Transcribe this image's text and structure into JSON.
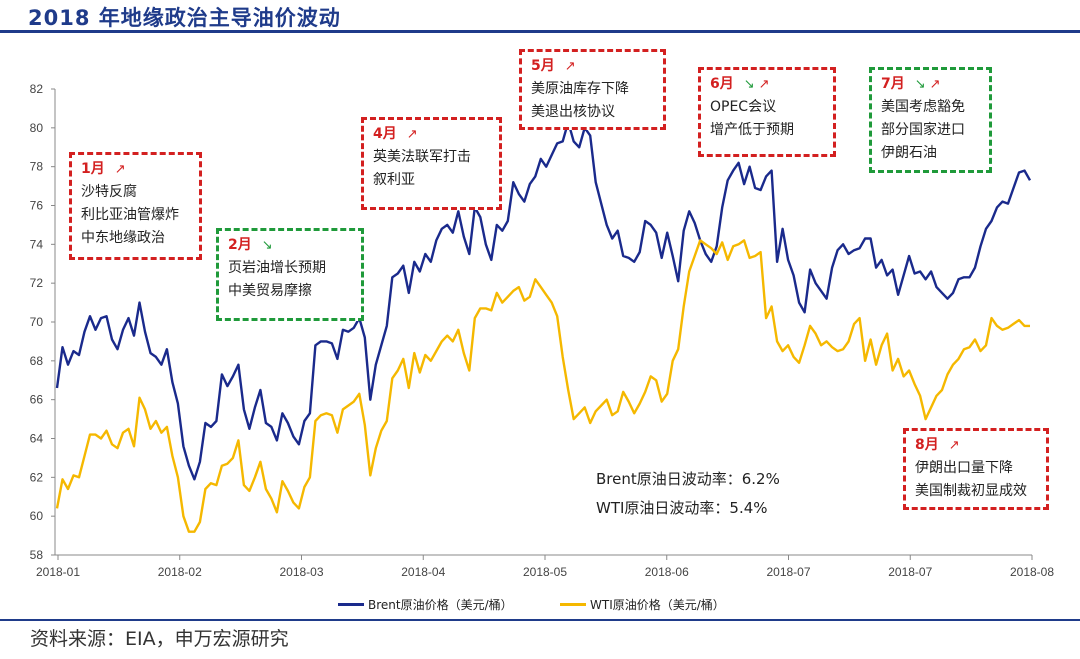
{
  "title": "2018 年地缘政治主导油价波动",
  "source": "资料来源：EIA，申万宏源研究",
  "volatility": {
    "brent": "Brent原油日波动率：6.2%",
    "wti": "WTI原油日波动率：5.4%"
  },
  "annotations": [
    {
      "month": "1月",
      "dir": "up",
      "color": "red",
      "lines": [
        "沙特反腐",
        "利比亚油管爆炸",
        "中东地缘政治"
      ]
    },
    {
      "month": "2月",
      "dir": "down",
      "color": "green",
      "lines": [
        "页岩油增长预期",
        "中美贸易摩擦"
      ]
    },
    {
      "month": "4月",
      "dir": "up",
      "color": "red",
      "lines": [
        "英美法联军打击",
        "叙利亚"
      ]
    },
    {
      "month": "5月",
      "dir": "up",
      "color": "red",
      "lines": [
        "美原油库存下降",
        "美退出核协议"
      ]
    },
    {
      "month": "6月",
      "dir": "downup",
      "color": "red",
      "lines": [
        "OPEC会议",
        "增产低于预期"
      ]
    },
    {
      "month": "7月",
      "dir": "downup",
      "color": "green",
      "lines": [
        "美国考虑豁免",
        "部分国家进口",
        "伊朗石油"
      ]
    },
    {
      "month": "8月",
      "dir": "up",
      "color": "red",
      "lines": [
        "伊朗出口量下降",
        "美国制裁初显成效"
      ]
    }
  ],
  "chart_data": {
    "type": "line",
    "x_tick_labels": [
      "2018-01",
      "2018-02",
      "2018-03",
      "2018-04",
      "2018-05",
      "2018-06",
      "2018-07",
      "2018-07",
      "2018-08"
    ],
    "ylim": [
      58,
      82
    ],
    "yticks": [
      58,
      60,
      62,
      64,
      66,
      68,
      70,
      72,
      74,
      76,
      78,
      80,
      82
    ],
    "x_positions_note": "index 0-200 over trading days",
    "series": [
      {
        "name": "Brent原油价格（美元/桶）",
        "color": "#1a2a8c",
        "values": [
          66.6,
          68.7,
          67.8,
          68.5,
          68.3,
          69.5,
          70.3,
          69.6,
          70.2,
          70.3,
          69.1,
          68.6,
          69.6,
          70.2,
          69.3,
          71.0,
          69.5,
          68.4,
          68.2,
          67.8,
          68.6,
          66.9,
          65.8,
          63.6,
          62.6,
          61.9,
          62.8,
          64.8,
          64.6,
          64.9,
          67.3,
          66.7,
          67.2,
          67.8,
          65.5,
          64.5,
          65.6,
          66.5,
          64.8,
          64.6,
          63.9,
          65.3,
          64.8,
          64.1,
          63.7,
          64.9,
          65.3,
          68.8,
          69.0,
          69.0,
          68.9,
          68.1,
          69.6,
          69.5,
          69.7,
          70.2,
          69.2,
          66.0,
          67.8,
          68.8,
          69.8,
          72.3,
          72.5,
          72.9,
          71.5,
          73.1,
          72.6,
          73.5,
          73.1,
          74.2,
          74.8,
          75.0,
          74.6,
          75.7,
          74.4,
          73.5,
          75.9,
          75.4,
          74.0,
          73.2,
          75.0,
          74.7,
          75.2,
          77.2,
          76.6,
          76.2,
          77.1,
          77.5,
          78.4,
          78.0,
          78.6,
          79.2,
          79.3,
          80.3,
          79.3,
          79.0,
          80.0,
          79.6,
          77.2,
          76.1,
          75.0,
          74.3,
          74.7,
          73.4,
          73.3,
          73.1,
          73.6,
          75.2,
          75.0,
          74.6,
          73.3,
          74.6,
          73.4,
          72.1,
          74.7,
          75.7,
          75.1,
          74.2,
          73.5,
          73.1,
          73.9,
          75.9,
          77.3,
          77.8,
          78.2,
          77.1,
          78.0,
          76.9,
          76.8,
          77.5,
          77.8,
          73.1,
          74.8,
          73.2,
          72.4,
          71.0,
          70.5,
          72.7,
          72.0,
          71.6,
          71.2,
          72.8,
          73.7,
          74.0,
          73.5,
          73.7,
          73.8,
          74.3,
          74.3,
          72.8,
          73.2,
          72.4,
          72.7,
          71.4,
          72.4,
          73.4,
          72.5,
          72.6,
          72.2,
          72.6,
          71.8,
          71.5,
          71.2,
          71.5,
          72.2,
          72.3,
          72.3,
          72.8,
          73.9,
          74.8,
          75.2,
          75.9,
          76.2,
          76.1,
          76.9,
          77.7,
          77.8,
          77.3
        ]
      },
      {
        "name": "WTI原油价格（美元/桶）",
        "color": "#f5b800",
        "values": [
          60.4,
          61.9,
          61.4,
          62.1,
          62.0,
          63.1,
          64.2,
          64.2,
          64.0,
          64.4,
          63.7,
          63.5,
          64.3,
          64.5,
          63.6,
          66.1,
          65.5,
          64.5,
          64.9,
          64.3,
          64.6,
          63.1,
          62.0,
          60.0,
          59.2,
          59.2,
          59.7,
          61.4,
          61.7,
          61.6,
          62.6,
          62.7,
          63.0,
          63.9,
          61.6,
          61.3,
          62.0,
          62.8,
          61.4,
          60.9,
          60.2,
          61.8,
          61.3,
          60.7,
          60.4,
          61.5,
          62.0,
          64.9,
          65.2,
          65.3,
          65.2,
          64.3,
          65.5,
          65.7,
          65.9,
          66.3,
          64.7,
          62.1,
          63.5,
          64.4,
          64.9,
          67.1,
          67.5,
          68.1,
          66.6,
          68.4,
          67.4,
          68.3,
          68.0,
          68.5,
          69.0,
          69.3,
          69.0,
          69.6,
          68.4,
          67.5,
          70.2,
          70.7,
          70.7,
          70.6,
          71.5,
          71.0,
          71.3,
          71.6,
          71.8,
          71.1,
          71.3,
          72.2,
          71.8,
          71.4,
          71.0,
          70.3,
          68.2,
          66.5,
          65.0,
          65.3,
          65.6,
          64.8,
          65.4,
          65.7,
          66.0,
          65.2,
          65.4,
          66.4,
          65.9,
          65.3,
          65.8,
          66.4,
          67.2,
          67.0,
          65.9,
          66.3,
          68.0,
          68.6,
          70.8,
          72.6,
          73.4,
          74.2,
          74.0,
          73.8,
          73.5,
          74.1,
          73.2,
          73.9,
          74.0,
          74.2,
          73.3,
          73.4,
          73.6,
          70.2,
          70.8,
          69.0,
          68.5,
          68.8,
          68.2,
          67.9,
          68.8,
          69.8,
          69.4,
          68.8,
          69.0,
          68.7,
          68.5,
          68.6,
          69.0,
          69.9,
          70.2,
          68.0,
          69.1,
          67.8,
          68.8,
          69.4,
          67.5,
          68.1,
          67.2,
          67.5,
          66.8,
          66.2,
          65.0,
          65.6,
          66.2,
          66.5,
          67.3,
          67.8,
          68.1,
          68.6,
          68.7,
          69.1,
          68.5,
          68.8,
          70.2,
          69.8,
          69.6,
          69.7,
          69.9,
          70.1,
          69.8,
          69.8
        ]
      }
    ]
  }
}
